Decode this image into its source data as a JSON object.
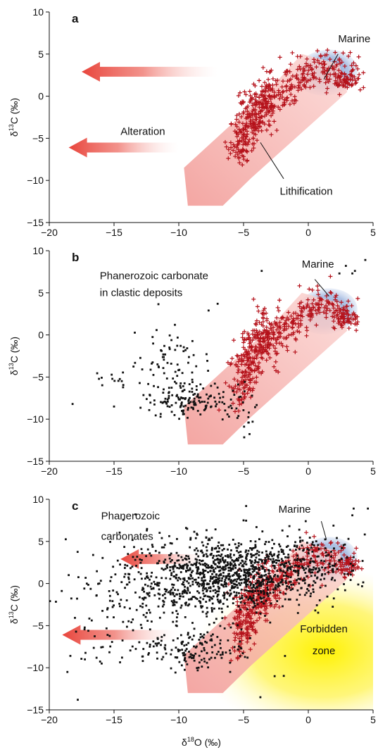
{
  "figure": {
    "xlabel_prefix": "δ",
    "xlabel_sup": "18",
    "xlabel_suffix": "O (‰)"
  },
  "colors": {
    "point_red": "#b5121b",
    "point_black": "#111111",
    "band_pink": "#f4a6a2",
    "marine_blue": "#7fa0d4",
    "arrow_red": "#e8453c",
    "forbidden_yellow": "#fff200"
  },
  "chart_data": [
    {
      "type": "scatter",
      "panel_label": "a",
      "xlim": [
        -20,
        5
      ],
      "ylim": [
        -15,
        10
      ],
      "xticks": [
        "−20",
        "−15",
        "−10",
        "−5",
        "0",
        "5"
      ],
      "yticks": [
        "−15",
        "−10",
        "−5",
        "0",
        "5",
        "10"
      ],
      "xticks_values": [
        -20,
        -15,
        -10,
        -5,
        0,
        5
      ],
      "yticks_values": [
        -15,
        -10,
        -5,
        0,
        5,
        10
      ],
      "show_x_title": false,
      "ylabel_prefix": "δ",
      "ylabel_sup": "13",
      "ylabel_suffix": "C (‰)",
      "annotations": [
        {
          "text": "Marine",
          "at": [
            2.3,
            6.4
          ]
        },
        {
          "text": "Alteration",
          "at": [
            -14.5,
            -4.6
          ]
        },
        {
          "text": "Lithification",
          "at": [
            -2.2,
            -11.7
          ]
        }
      ],
      "overlays": {
        "marine_ellipse": {
          "cx": 1.4,
          "cy": 2.8,
          "rx": 2.4,
          "ry": 2.7
        },
        "lithification_band": [
          [
            -9.6,
            -8.5
          ],
          [
            -3.0,
            0.8
          ],
          [
            -0.5,
            5.0
          ],
          [
            2.4,
            3.8
          ],
          [
            3.0,
            0.5
          ],
          [
            -4.4,
            -9.7
          ],
          [
            -6.6,
            -13.0
          ],
          [
            -9.3,
            -13.0
          ]
        ],
        "alteration_arrows": [
          {
            "from": [
              -7.0,
              2.9
            ],
            "to": [
              -17.5,
              2.9
            ]
          },
          {
            "from": [
              -10.0,
              -6.1
            ],
            "to": [
              -18.5,
              -6.1
            ]
          }
        ]
      },
      "series": [
        {
          "marker": "+",
          "color": "#b5121b",
          "clusters": [
            {
              "cx": -3.8,
              "cy": -1.4,
              "sx": 0.95,
              "sy": 1.9,
              "rho": 0.5,
              "n": 240
            },
            {
              "cx": -5.0,
              "cy": -5.3,
              "sx": 0.5,
              "sy": 1.6,
              "rho": 0.3,
              "n": 80
            },
            {
              "cx": -1.0,
              "cy": 1.7,
              "sx": 0.9,
              "sy": 1.3,
              "rho": 0.5,
              "n": 80
            },
            {
              "cx": 1.6,
              "cy": 3.2,
              "sx": 1.1,
              "sy": 1.1,
              "rho": -0.2,
              "n": 90
            },
            {
              "cx": 3.0,
              "cy": 2.0,
              "sx": 0.5,
              "sy": 0.6,
              "rho": 0.0,
              "n": 50
            }
          ]
        }
      ]
    },
    {
      "type": "scatter",
      "panel_label": "b",
      "xlim": [
        -20,
        5
      ],
      "ylim": [
        -15,
        10
      ],
      "xticks": [
        "−20",
        "−15",
        "−10",
        "−5",
        "0",
        "5"
      ],
      "yticks": [
        "−15",
        "−10",
        "−5",
        "0",
        "5",
        "10"
      ],
      "xticks_values": [
        -20,
        -15,
        -10,
        -5,
        0,
        5
      ],
      "yticks_values": [
        -15,
        -10,
        -5,
        0,
        5,
        10
      ],
      "show_x_title": false,
      "ylabel_prefix": "δ",
      "ylabel_sup": "13",
      "ylabel_suffix": "C (‰)",
      "annotations": [
        {
          "text": "Phanerozoic carbonate",
          "at": [
            -16.1,
            6.6
          ]
        },
        {
          "text": "in clastic deposits",
          "at": [
            -16.1,
            4.6
          ]
        },
        {
          "text": "Marine",
          "at": [
            -0.5,
            8.0
          ]
        }
      ],
      "overlays": {
        "marine_ellipse": {
          "cx": 1.4,
          "cy": 2.8,
          "rx": 2.4,
          "ry": 2.7
        },
        "lithification_band": [
          [
            -9.6,
            -8.5
          ],
          [
            -3.0,
            0.8
          ],
          [
            -0.5,
            5.0
          ],
          [
            2.4,
            3.8
          ],
          [
            3.0,
            0.5
          ],
          [
            -4.4,
            -9.7
          ],
          [
            -6.6,
            -13.0
          ],
          [
            -9.3,
            -13.0
          ]
        ]
      },
      "series": [
        {
          "marker": "+",
          "color": "#b5121b",
          "clusters": [
            {
              "cx": -3.8,
              "cy": -1.4,
              "sx": 0.95,
              "sy": 1.9,
              "rho": 0.5,
              "n": 240
            },
            {
              "cx": -5.0,
              "cy": -5.3,
              "sx": 0.5,
              "sy": 1.6,
              "rho": 0.3,
              "n": 80
            },
            {
              "cx": -1.0,
              "cy": 1.7,
              "sx": 0.9,
              "sy": 1.3,
              "rho": 0.5,
              "n": 80
            },
            {
              "cx": 1.6,
              "cy": 3.2,
              "sx": 1.1,
              "sy": 1.1,
              "rho": -0.2,
              "n": 90
            },
            {
              "cx": 3.0,
              "cy": 2.0,
              "sx": 0.5,
              "sy": 0.6,
              "rho": 0.0,
              "n": 50
            }
          ]
        },
        {
          "marker": "dot",
          "color": "#111111",
          "clusters": [
            {
              "cx": -9.5,
              "cy": -7.8,
              "sx": 1.4,
              "sy": 0.8,
              "rho": 0.0,
              "n": 130
            },
            {
              "cx": -10.5,
              "cy": -3.5,
              "sx": 1.6,
              "sy": 2.2,
              "rho": 0.0,
              "n": 70
            },
            {
              "cx": -15.0,
              "cy": -5.0,
              "sx": 1.5,
              "sy": 0.7,
              "rho": 0.0,
              "n": 14
            },
            {
              "cx": -5.5,
              "cy": -8.0,
              "sx": 1.0,
              "sy": 1.6,
              "rho": 0.0,
              "n": 30
            }
          ],
          "points": [
            [
              -18.2,
              -8.2
            ],
            [
              -15.0,
              -8.5
            ],
            [
              -10.3,
              1.2
            ],
            [
              -7.0,
              3.7
            ],
            [
              -7.7,
              2.9
            ],
            [
              2.4,
              7.3
            ],
            [
              3.4,
              7.3
            ],
            [
              3.6,
              7.6
            ],
            [
              4.4,
              8.9
            ],
            [
              2.9,
              8.2
            ],
            [
              -3.6,
              7.6
            ],
            [
              -4.6,
              -10.4
            ],
            [
              -4.3,
              -10.3
            ]
          ]
        }
      ]
    },
    {
      "type": "scatter",
      "panel_label": "c",
      "xlim": [
        -20,
        5
      ],
      "ylim": [
        -15,
        10
      ],
      "xticks": [
        "−20",
        "−15",
        "−10",
        "−5",
        "0",
        "5"
      ],
      "yticks": [
        "−15",
        "−10",
        "−5",
        "0",
        "5",
        "10"
      ],
      "xticks_values": [
        -20,
        -15,
        -10,
        -5,
        0,
        5
      ],
      "yticks_values": [
        -15,
        -10,
        -5,
        0,
        5,
        10
      ],
      "show_x_title": true,
      "ylabel_prefix": "δ",
      "ylabel_sup": "13",
      "ylabel_suffix": "C (‰)",
      "annotations": [
        {
          "text": "Phanerozoic",
          "at": [
            -16.0,
            7.6
          ]
        },
        {
          "text": "carbonates",
          "at": [
            -16.0,
            5.2
          ]
        },
        {
          "text": "Marine",
          "at": [
            -2.3,
            8.4
          ]
        },
        {
          "text": "Forbidden",
          "at": [
            1.2,
            -5.8
          ]
        },
        {
          "text": "zone",
          "at": [
            1.2,
            -8.4
          ]
        }
      ],
      "overlays": {
        "forbidden_zone": {
          "cx": 1.2,
          "cy": -8.0,
          "r": 10.0
        },
        "marine_ellipse": {
          "cx": 1.4,
          "cy": 2.8,
          "rx": 2.4,
          "ry": 2.7
        },
        "lithification_band": [
          [
            -9.6,
            -8.5
          ],
          [
            -3.0,
            0.8
          ],
          [
            -0.5,
            5.0
          ],
          [
            2.4,
            3.8
          ],
          [
            3.0,
            0.5
          ],
          [
            -4.4,
            -9.7
          ],
          [
            -6.6,
            -13.0
          ],
          [
            -9.3,
            -13.0
          ]
        ],
        "alteration_arrows": [
          {
            "from": [
              -8.0,
              2.9
            ],
            "to": [
              -14.5,
              2.9
            ]
          },
          {
            "from": [
              -10.0,
              -6.1
            ],
            "to": [
              -19.0,
              -6.1
            ]
          }
        ]
      },
      "series": [
        {
          "marker": "+",
          "color": "#b5121b",
          "clusters": [
            {
              "cx": -3.8,
              "cy": -1.4,
              "sx": 0.95,
              "sy": 1.9,
              "rho": 0.5,
              "n": 240
            },
            {
              "cx": -5.0,
              "cy": -5.3,
              "sx": 0.5,
              "sy": 1.6,
              "rho": 0.3,
              "n": 80
            },
            {
              "cx": -1.0,
              "cy": 1.7,
              "sx": 0.9,
              "sy": 1.3,
              "rho": 0.5,
              "n": 80
            },
            {
              "cx": 1.6,
              "cy": 3.2,
              "sx": 1.1,
              "sy": 1.1,
              "rho": -0.2,
              "n": 90
            },
            {
              "cx": 3.0,
              "cy": 2.0,
              "sx": 0.5,
              "sy": 0.6,
              "rho": 0.0,
              "n": 50
            }
          ]
        },
        {
          "marker": "dot",
          "color": "#111111",
          "clusters": [
            {
              "cx": -5.0,
              "cy": 1.0,
              "sx": 3.2,
              "sy": 2.0,
              "rho": 0.15,
              "n": 900
            },
            {
              "cx": -10.5,
              "cy": 0.5,
              "sx": 3.0,
              "sy": 2.8,
              "rho": 0.0,
              "n": 300
            },
            {
              "cx": -9.0,
              "cy": -7.8,
              "sx": 2.2,
              "sy": 1.2,
              "rho": 0.0,
              "n": 160
            },
            {
              "cx": -15.0,
              "cy": -3.0,
              "sx": 1.8,
              "sy": 3.5,
              "rho": 0.0,
              "n": 70
            },
            {
              "cx": 0.5,
              "cy": 2.5,
              "sx": 1.6,
              "sy": 1.6,
              "rho": 0.0,
              "n": 100
            }
          ],
          "points": [
            [
              -18.6,
              -10.5
            ],
            [
              -17.8,
              -13.8
            ],
            [
              -18.5,
              1.0
            ],
            [
              -3.7,
              -13.5
            ],
            [
              -2.6,
              -11.0
            ],
            [
              -0.8,
              -3.5
            ],
            [
              -5.0,
              7.5
            ],
            [
              -5.8,
              5.2
            ],
            [
              -4.0,
              6.7
            ],
            [
              -2.0,
              6.3
            ],
            [
              -4.8,
              9.2
            ],
            [
              2.2,
              5.4
            ],
            [
              3.1,
              5.3
            ],
            [
              2.6,
              4.2
            ],
            [
              3.5,
              8.9
            ],
            [
              3.4,
              8.1
            ],
            [
              4.5,
              11.4
            ],
            [
              4.0,
              10.6
            ],
            [
              4.6,
              8.9
            ],
            [
              -0.2,
              7.4
            ],
            [
              -1.8,
              -8.6
            ]
          ]
        }
      ]
    }
  ]
}
